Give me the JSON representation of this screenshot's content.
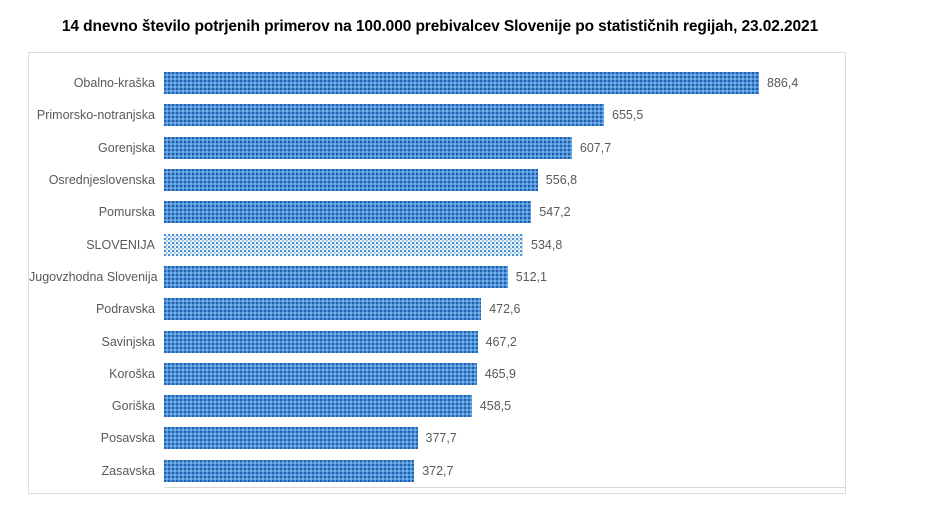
{
  "title": "14 dnevno število potrjenih primerov na 100.000 prebivalcev Slovenije po statističnih regijah, 23.02.2021",
  "colors": {
    "bar_fill": "#4e93d9",
    "bar_pattern_dot": "#1f5fae",
    "highlight_bg": "#ffffff",
    "highlight_dot": "#4a90d5",
    "label_text": "#595959",
    "title_text": "#000000",
    "chart_border": "#dcdcdc"
  },
  "chart_data": {
    "type": "bar",
    "orientation": "horizontal",
    "title": "14 dnevno število potrjenih primerov na 100.000 prebivalcev Slovenije po statističnih regijah, 23.02.2021",
    "categories": [
      "Obalno-kraška",
      "Primorsko-notranjska",
      "Gorenjska",
      "Osrednjeslovenska",
      "Pomurska",
      "SLOVENIJA",
      "Jugovzhodna Slovenija",
      "Podravska",
      "Savinjska",
      "Koroška",
      "Goriška",
      "Posavska",
      "Zasavska"
    ],
    "values": [
      886.4,
      655.5,
      607.7,
      556.8,
      547.2,
      534.8,
      512.1,
      472.6,
      467.2,
      465.9,
      458.5,
      377.7,
      372.7
    ],
    "value_labels": [
      "886,4",
      "655,5",
      "607,7",
      "556,8",
      "547,2",
      "534,8",
      "512,1",
      "472,6",
      "467,2",
      "465,9",
      "458,5",
      "377,7",
      "372,7"
    ],
    "highlight_category": "SLOVENIJA",
    "xlabel": "",
    "ylabel": "",
    "xlim": [
      0,
      1000
    ],
    "grid": "none",
    "legend": "none",
    "data_labels": "outside-end",
    "decimal_separator": ","
  }
}
